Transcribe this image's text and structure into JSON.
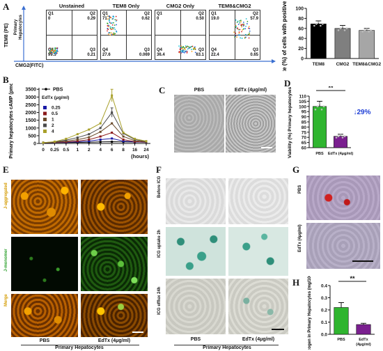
{
  "panels": {
    "A": "A",
    "B": "B",
    "C": "C",
    "D": "D",
    "E": "E",
    "F": "F",
    "G": "G",
    "H": "H"
  },
  "A": {
    "flow_titles": [
      "Unstained",
      "TEM8 Only",
      "CMG2 Only",
      "TEM8&CMG2"
    ],
    "y_axis_label": "TEM8 (PE)",
    "x_axis_label": "CMG2(FITC)",
    "row_label": "Primary Hepatocytes",
    "quadrants": [
      {
        "q1": "Q1",
        "q1v": "0",
        "q2": "Q2",
        "q2v": "0.29",
        "q4": "Q4",
        "q4v": "99.5",
        "q3": "Q3",
        "q3v": "0.21"
      },
      {
        "q1": "Q1",
        "q1v": "71.7",
        "q2": "Q2",
        "q2v": "0.62",
        "q4": "Q4",
        "q4v": "27.6",
        "q3": "Q3",
        "q3v": "0.069"
      },
      {
        "q1": "Q1",
        "q1v": "0",
        "q2": "Q2",
        "q2v": "0.50",
        "q4": "Q4",
        "q4v": "36.4",
        "q3": "Q3",
        "q3v": "63.1"
      },
      {
        "q1": "Q1",
        "q1v": "19.0",
        "q2": "Q2",
        "q2v": "57.9",
        "q4": "Q4",
        "q4v": "22.4",
        "q3": "Q3",
        "q3v": "0.65"
      }
    ]
  },
  "C": {
    "labels": [
      "PBS",
      "EdTx (4μg/ml)"
    ]
  },
  "E": {
    "row_labels": [
      "J-aggregated",
      "J-monomer",
      "Merge"
    ],
    "col_labels": [
      "PBS",
      "EdTx (4μg/ml)"
    ],
    "caption": "Primary Hepatocytes"
  },
  "F": {
    "row_labels": [
      "Before ICG",
      "ICG uptake 2h",
      "ICG efflux 24h"
    ],
    "col_labels": [
      "PBS",
      "EdTx (4μg/ml)"
    ],
    "caption": "Primary Hepatocytes"
  },
  "G": {
    "row_labels": [
      "PBS",
      "EdTx (4μg/ml)"
    ]
  },
  "colors": {
    "pbs_green": "#2fb52f",
    "edtx_purple": "#7a1f8f",
    "annot_blue": "#1f3fd6"
  },
  "chart_data": [
    {
      "type": "bar",
      "id": "A-bar",
      "categories": [
        "TEM8",
        "CMG2",
        "TEM8&CMG2"
      ],
      "values": [
        69,
        60,
        56
      ],
      "errors": [
        6,
        6,
        4
      ],
      "ylabel": "The rate (%) of cells with positive staining",
      "ylim": [
        0,
        100
      ],
      "yticks": [
        0,
        20,
        40,
        60,
        80,
        100
      ],
      "colors": [
        "#000000",
        "#7f7f7f",
        "#a6a6a6"
      ]
    },
    {
      "type": "line",
      "id": "B-line",
      "x": [
        "0",
        "0.25",
        "0.5",
        "1",
        "2",
        "4",
        "6",
        "8",
        "16",
        "24"
      ],
      "xlabel": "(hours)",
      "ylabel": "Primary hepatocytes cAMP (pmol/ml)",
      "ylim": [
        0,
        3600
      ],
      "yticks": [
        0,
        500,
        1000,
        1500,
        2000,
        2500,
        3000,
        3500
      ],
      "legend_title": "EdTx (μg/ml)",
      "series": [
        {
          "name": "PBS",
          "color": "#000000",
          "values": [
            50,
            55,
            60,
            70,
            80,
            100,
            110,
            100,
            90,
            80
          ],
          "errors": [
            0,
            0,
            0,
            0,
            0,
            0,
            0,
            0,
            0,
            0
          ]
        },
        {
          "name": "0.25",
          "color": "#1a1aa6",
          "values": [
            50,
            60,
            80,
            110,
            150,
            250,
            320,
            150,
            100,
            80
          ],
          "errors": [
            0,
            0,
            0,
            0,
            0,
            0,
            0,
            0,
            0,
            0
          ]
        },
        {
          "name": "0.5",
          "color": "#8b1a1a",
          "values": [
            50,
            70,
            100,
            150,
            250,
            450,
            700,
            250,
            120,
            90
          ],
          "errors": [
            0,
            0,
            0,
            0,
            0,
            0,
            0,
            0,
            0,
            0
          ]
        },
        {
          "name": "1",
          "color": "#6a4a2a",
          "values": [
            50,
            80,
            150,
            250,
            400,
            750,
            1300,
            450,
            180,
            100
          ],
          "errors": [
            0,
            0,
            0,
            0,
            0,
            0,
            0,
            0,
            0,
            0
          ]
        },
        {
          "name": "2",
          "color": "#4a4a4a",
          "values": [
            50,
            100,
            220,
            380,
            600,
            1000,
            2000,
            650,
            250,
            130
          ],
          "errors": [
            0,
            0,
            0,
            0,
            0,
            0,
            300,
            0,
            0,
            0
          ]
        },
        {
          "name": "4",
          "color": "#a8a02a",
          "values": [
            50,
            120,
            300,
            600,
            900,
            1300,
            3100,
            700,
            300,
            150
          ],
          "errors": [
            0,
            0,
            0,
            0,
            0,
            0,
            400,
            0,
            0,
            0
          ]
        }
      ]
    },
    {
      "type": "bar",
      "id": "D-bar",
      "categories": [
        "PBS",
        "EdTx (4μg/ml)"
      ],
      "values": [
        100,
        71
      ],
      "errors": [
        5,
        2
      ],
      "ylabel": "Viability (%) Primary hepatocytes",
      "ylim": [
        60,
        110
      ],
      "yticks": [
        60,
        65,
        70,
        75,
        80,
        85,
        90,
        95,
        100,
        105,
        110
      ],
      "annotation": "↓29%",
      "significance": "**",
      "colors": [
        "#2fb52f",
        "#7a1f8f"
      ]
    },
    {
      "type": "bar",
      "id": "H-bar",
      "categories": [
        "PBS",
        "EdTx (4μg/ml)"
      ],
      "values": [
        0.22,
        0.08
      ],
      "errors": [
        0.04,
        0.01
      ],
      "ylabel": "Glycogen in Primary Hepatocytes (mg/10^6 cell)",
      "ylim": [
        0,
        0.4
      ],
      "yticks": [
        0.0,
        0.1,
        0.2,
        0.3,
        0.4
      ],
      "significance": "**",
      "colors": [
        "#2fb52f",
        "#7a1f8f"
      ]
    }
  ]
}
